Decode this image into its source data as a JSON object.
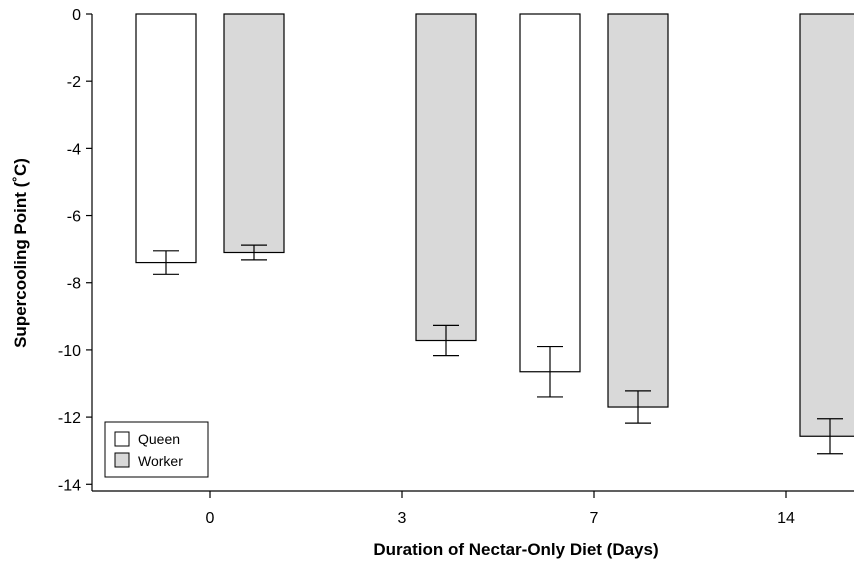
{
  "chart_data": {
    "type": "bar",
    "categories": [
      "0",
      "3",
      "7",
      "14"
    ],
    "series": [
      {
        "name": "Queen",
        "values": [
          -7.4,
          null,
          -10.65,
          null
        ],
        "errors": [
          0.35,
          null,
          0.75,
          null
        ]
      },
      {
        "name": "Worker",
        "values": [
          -7.1,
          -9.72,
          -11.7,
          -12.57
        ],
        "errors": [
          0.22,
          0.45,
          0.48,
          0.52
        ]
      }
    ],
    "xlabel": "Duration of Nectar-Only Diet (Days)",
    "ylabel": "Supercooling Point (˚C)",
    "ylim": [
      -14.2,
      0
    ],
    "yticks": [
      0,
      -2,
      -4,
      -6,
      -8,
      -10,
      -12,
      -14
    ],
    "ytick_labels": [
      "0",
      "-2",
      "-4",
      "-6",
      "-8",
      "-10",
      "-12",
      "-14"
    ],
    "legend_position": "bottom-left",
    "grid": false,
    "colors": {
      "Queen": "#ffffff",
      "Worker": "#d9d9d9",
      "outline": "#000000"
    }
  }
}
